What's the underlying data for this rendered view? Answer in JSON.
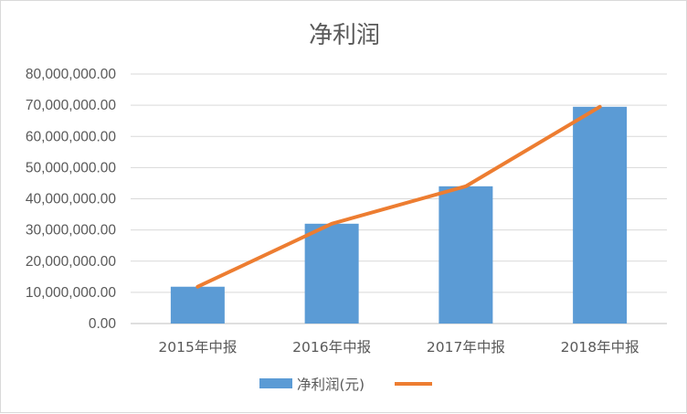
{
  "chart_data": {
    "type": "bar",
    "title": "净利润",
    "categories": [
      "2015年中报",
      "2016年中报",
      "2017年中报",
      "2018年中报"
    ],
    "series": [
      {
        "name": "净利润(元)",
        "type": "bar",
        "color": "#5b9bd5",
        "values": [
          11800000,
          32000000,
          44000000,
          69500000
        ]
      },
      {
        "name": "",
        "type": "line",
        "color": "#ed7d31",
        "values": [
          11800000,
          32000000,
          44000000,
          69500000
        ]
      }
    ],
    "y_ticks": [
      "0.00",
      "10,000,000.00",
      "20,000,000.00",
      "30,000,000.00",
      "40,000,000.00",
      "50,000,000.00",
      "60,000,000.00",
      "70,000,000.00",
      "80,000,000.00"
    ],
    "ylim": [
      0,
      80000000
    ],
    "grid": true,
    "legend": "bottom"
  }
}
